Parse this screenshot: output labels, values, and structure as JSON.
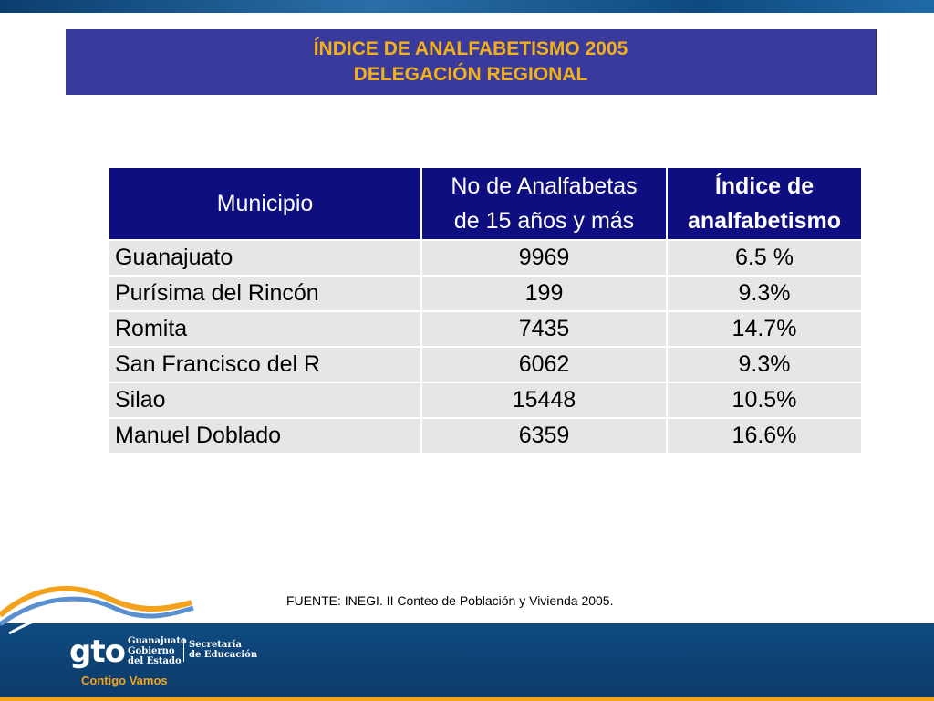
{
  "title": {
    "line1": "ÍNDICE DE ANALFABETISMO 2005",
    "line2": "DELEGACIÓN REGIONAL"
  },
  "table": {
    "headers": {
      "col1": "Municipio",
      "col2_line1": "No de Analfabetas",
      "col2_line2": "de 15 años y más",
      "col3_line1": "Índice de",
      "col3_line2": "analfabetismo"
    },
    "rows": [
      {
        "municipio": "Guanajuato",
        "analfabetas": "9969",
        "indice": "6.5 %"
      },
      {
        "municipio": "Purísima del Rincón",
        "analfabetas": "199",
        "indice": "9.3%"
      },
      {
        "municipio": "Romita",
        "analfabetas": "7435",
        "indice": "14.7%"
      },
      {
        "municipio": "San Francisco del R",
        "analfabetas": "6062",
        "indice": "9.3%"
      },
      {
        "municipio": "Silao",
        "analfabetas": "15448",
        "indice": "10.5%"
      },
      {
        "municipio": "Manuel Doblado",
        "analfabetas": "6359",
        "indice": "16.6%"
      }
    ]
  },
  "source": "FUENTE: INEGI. II Conteo de Población y Vivienda 2005.",
  "footer": {
    "logo_text": "gto",
    "gobierno": [
      "Guanajuato",
      "Gobierno",
      "del Estado"
    ],
    "secretaria": [
      "Secretaría",
      "de Educación"
    ],
    "slogan": "Contigo Vamos"
  },
  "colors": {
    "title_bg": "#3a3a9c",
    "title_text": "#f2b11a",
    "header_bg": "#0e0e80",
    "cell_bg": "#e6e6e6",
    "footer_bg": "#0f4a80",
    "accent_orange": "#f3a21c"
  }
}
